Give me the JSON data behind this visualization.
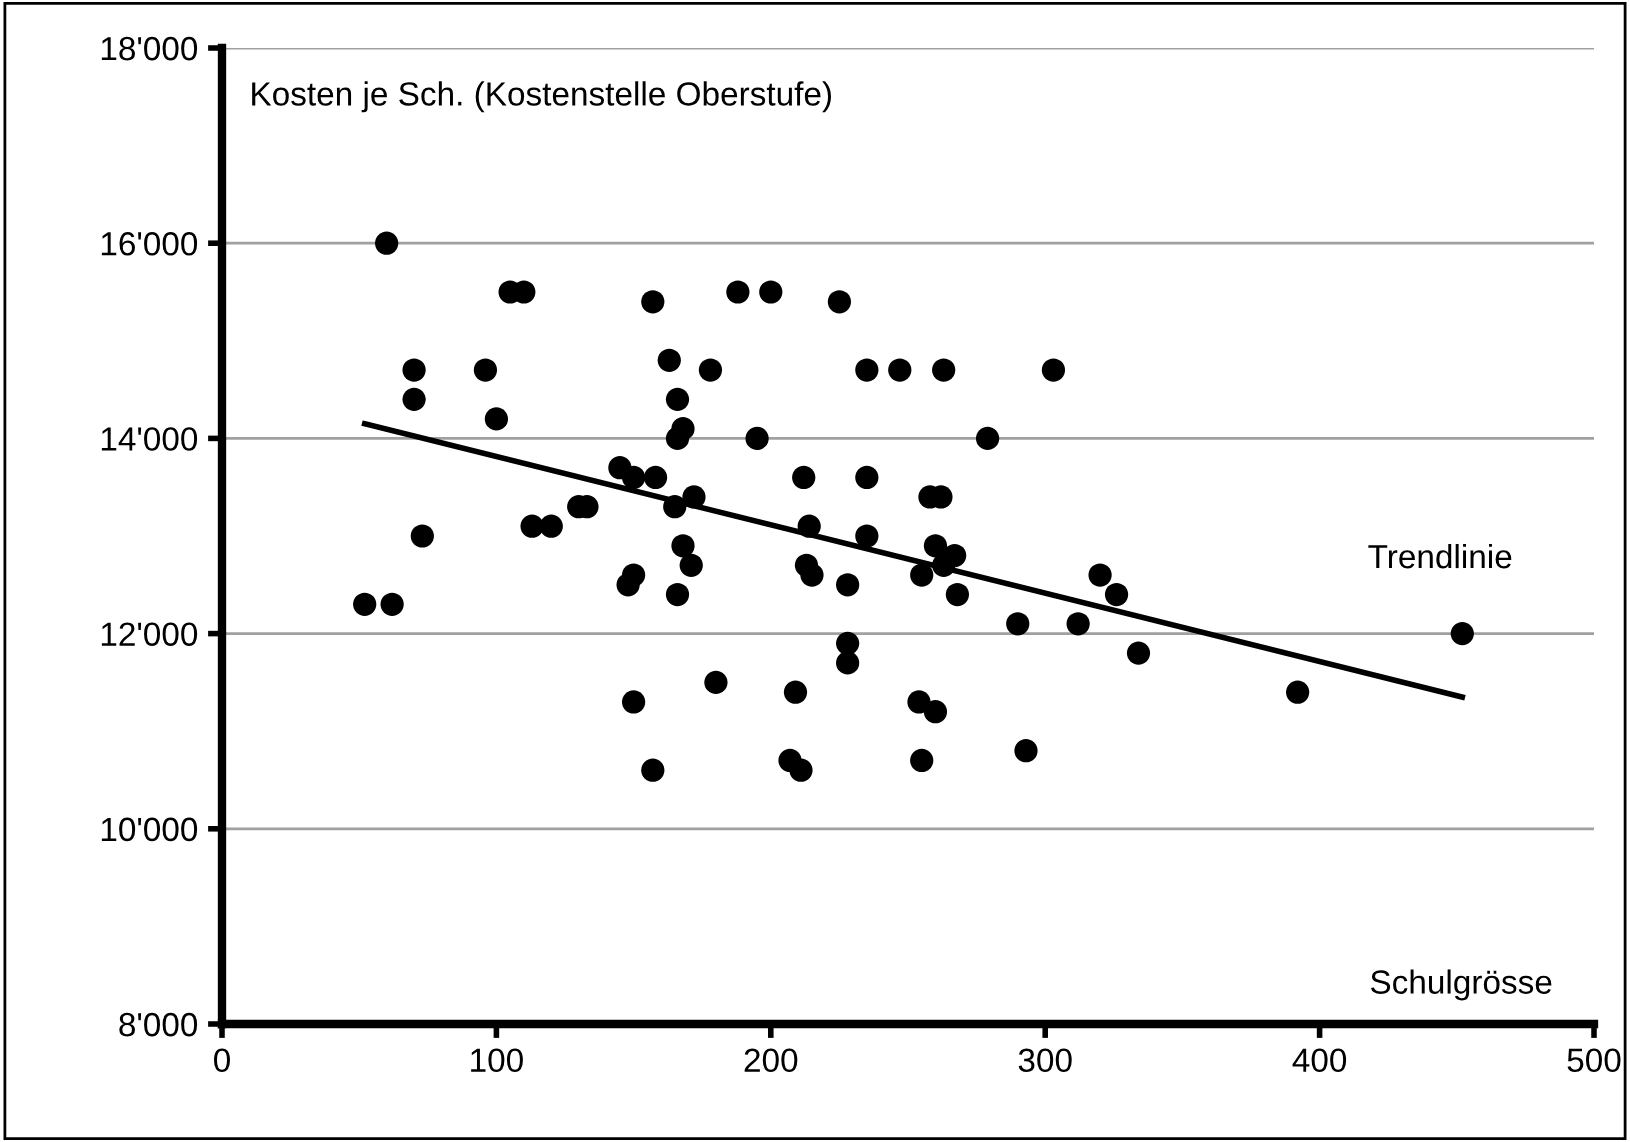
{
  "chart_data": {
    "type": "scatter",
    "xlabel": "Schulgrösse",
    "ylabel": "Kosten je Sch. (Kostenstelle Oberstufe)",
    "xlim": [
      0,
      500
    ],
    "xticks": [
      0,
      100,
      200,
      300,
      400,
      500
    ],
    "ylim": [
      8000,
      18000
    ],
    "yticks": [
      {
        "value": 8000,
        "label": "8'000"
      },
      {
        "value": 10000,
        "label": "10'000"
      },
      {
        "value": 12000,
        "label": "12'000"
      },
      {
        "value": 14000,
        "label": "14'000"
      },
      {
        "value": 16000,
        "label": "16'000"
      },
      {
        "value": 18000,
        "label": "18'000"
      }
    ],
    "grid": "y",
    "series": [
      {
        "marker": "circle",
        "color": "#000000",
        "x": [
          52,
          62,
          60,
          70,
          70,
          73,
          96,
          100,
          105,
          110,
          113,
          120,
          130,
          133,
          145,
          148,
          150,
          150,
          150,
          157,
          157,
          158,
          163,
          165,
          166,
          166,
          168,
          166,
          168,
          171,
          172,
          178,
          180,
          188,
          195,
          200,
          207,
          209,
          211,
          212,
          213,
          214,
          215,
          225,
          228,
          228,
          228,
          235,
          235,
          235,
          247,
          254,
          255,
          255,
          258,
          262,
          260,
          260,
          263,
          263,
          267,
          268,
          279,
          290,
          293,
          303,
          312,
          320,
          326,
          334,
          392,
          452
        ],
        "values": [
          12300,
          12300,
          16000,
          14700,
          14400,
          13000,
          14700,
          14200,
          15500,
          15500,
          13100,
          13100,
          13300,
          13300,
          13700,
          12500,
          13600,
          12600,
          11300,
          15400,
          10600,
          13600,
          14800,
          13300,
          14400,
          14000,
          14100,
          12400,
          12900,
          12700,
          13400,
          14700,
          11500,
          15500,
          14000,
          15500,
          10700,
          11400,
          10600,
          13600,
          12700,
          13100,
          12600,
          15400,
          12500,
          11900,
          11700,
          14700,
          13600,
          13000,
          14700,
          11300,
          12600,
          10700,
          13400,
          13400,
          12900,
          11200,
          14700,
          12700,
          12800,
          12400,
          14000,
          12100,
          10800,
          14700,
          12100,
          12600,
          12400,
          11800,
          11400,
          12000
        ]
      },
      {
        "type": "line",
        "color": "#000000",
        "x": [
          52,
          452
        ],
        "values": [
          14150,
          11350
        ]
      }
    ],
    "annotations": [
      "Trendlinie"
    ]
  }
}
